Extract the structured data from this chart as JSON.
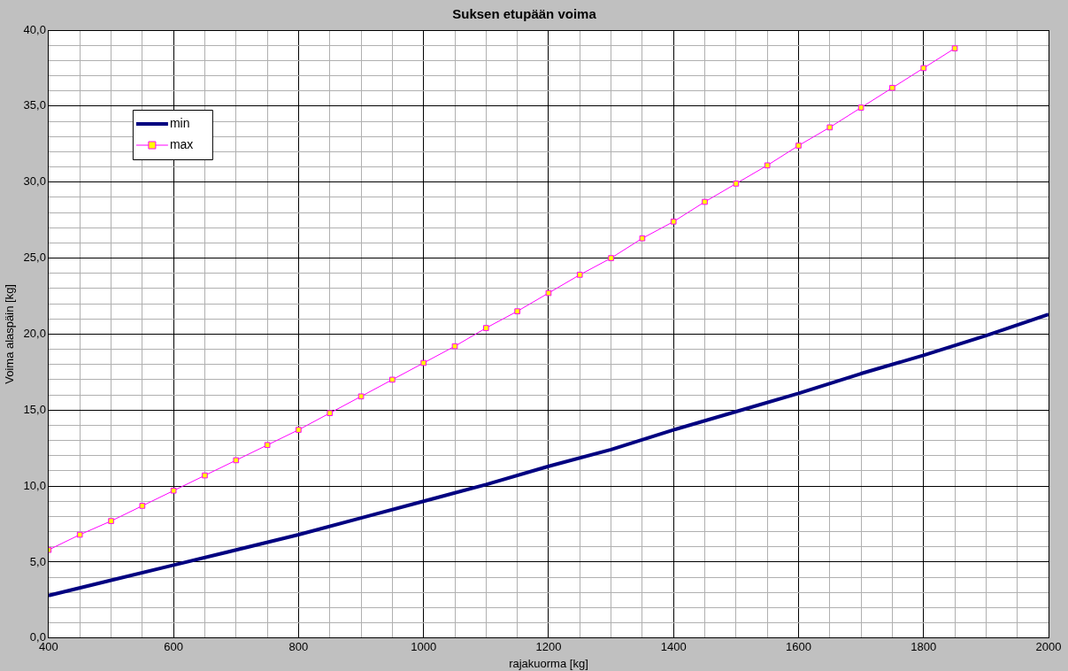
{
  "chart_data": {
    "type": "line",
    "title": "Suksen etupään voima",
    "xlabel": "rajakuorma [kg]",
    "ylabel": "Voima alaspäin [kg]",
    "xlim": [
      400,
      2000
    ],
    "ylim": [
      0,
      40
    ],
    "xticks": [
      400,
      {
        "value": 450,
        "label": null
      },
      {
        "value": 500,
        "label": null
      },
      {
        "value": 550,
        "label": null
      },
      600,
      {
        "value": 650,
        "label": null
      },
      {
        "value": 700,
        "label": null
      },
      {
        "value": 750,
        "label": null
      },
      800,
      {
        "value": 850,
        "label": null
      },
      {
        "value": 900,
        "label": null
      },
      {
        "value": 950,
        "label": null
      },
      1000,
      {
        "value": 1050,
        "label": null
      },
      {
        "value": 1100,
        "label": null
      },
      {
        "value": 1150,
        "label": null
      },
      1200,
      {
        "value": 1250,
        "label": null
      },
      {
        "value": 1300,
        "label": null
      },
      {
        "value": 1350,
        "label": null
      },
      1400,
      {
        "value": 1450,
        "label": null
      },
      {
        "value": 1500,
        "label": null
      },
      {
        "value": 1550,
        "label": null
      },
      1600,
      {
        "value": 1650,
        "label": null
      },
      {
        "value": 1700,
        "label": null
      },
      {
        "value": 1750,
        "label": null
      },
      1800,
      {
        "value": 1850,
        "label": null
      },
      {
        "value": 1900,
        "label": null
      },
      {
        "value": 1950,
        "label": null
      },
      2000
    ],
    "yticks": [
      {
        "value": 0,
        "label": "0,0"
      },
      {
        "value": 1,
        "label": null
      },
      {
        "value": 2,
        "label": null
      },
      {
        "value": 3,
        "label": null
      },
      {
        "value": 4,
        "label": null
      },
      {
        "value": 5,
        "label": "5,0"
      },
      {
        "value": 6,
        "label": null
      },
      {
        "value": 7,
        "label": null
      },
      {
        "value": 8,
        "label": null
      },
      {
        "value": 9,
        "label": null
      },
      {
        "value": 10,
        "label": "10,0"
      },
      {
        "value": 11,
        "label": null
      },
      {
        "value": 12,
        "label": null
      },
      {
        "value": 13,
        "label": null
      },
      {
        "value": 14,
        "label": null
      },
      {
        "value": 15,
        "label": "15,0"
      },
      {
        "value": 16,
        "label": null
      },
      {
        "value": 17,
        "label": null
      },
      {
        "value": 18,
        "label": null
      },
      {
        "value": 19,
        "label": null
      },
      {
        "value": 20,
        "label": "20,0"
      },
      {
        "value": 21,
        "label": null
      },
      {
        "value": 22,
        "label": null
      },
      {
        "value": 23,
        "label": null
      },
      {
        "value": 24,
        "label": null
      },
      {
        "value": 25,
        "label": "25,0"
      },
      {
        "value": 26,
        "label": null
      },
      {
        "value": 27,
        "label": null
      },
      {
        "value": 28,
        "label": null
      },
      {
        "value": 29,
        "label": null
      },
      {
        "value": 30,
        "label": "30,0"
      },
      {
        "value": 31,
        "label": null
      },
      {
        "value": 32,
        "label": null
      },
      {
        "value": 33,
        "label": null
      },
      {
        "value": 34,
        "label": null
      },
      {
        "value": 35,
        "label": "35,0"
      },
      {
        "value": 36,
        "label": null
      },
      {
        "value": 37,
        "label": null
      },
      {
        "value": 38,
        "label": null
      },
      {
        "value": 39,
        "label": null
      },
      {
        "value": 40,
        "label": "40,0"
      }
    ],
    "grid": true,
    "legend": "top left",
    "series": [
      {
        "name": "min",
        "color": "#000080",
        "marker": "none",
        "x": [
          400,
          500,
          600,
          700,
          800,
          900,
          1000,
          1100,
          1200,
          1300,
          1400,
          1500,
          1600,
          1700,
          1800,
          1900,
          2000
        ],
        "values": [
          2.8,
          3.8,
          4.8,
          5.8,
          6.8,
          7.9,
          9.0,
          10.1,
          11.3,
          12.4,
          13.7,
          14.9,
          16.1,
          17.4,
          18.6,
          19.9,
          21.3
        ]
      },
      {
        "name": "max",
        "color": "#ff00ff",
        "marker": "square",
        "x": [
          400,
          450,
          500,
          550,
          600,
          650,
          700,
          750,
          800,
          850,
          900,
          950,
          1000,
          1050,
          1100,
          1150,
          1200,
          1250,
          1300,
          1350,
          1400,
          1450,
          1500,
          1550,
          1600,
          1650,
          1700,
          1750,
          1800,
          1850
        ],
        "values": [
          5.8,
          6.8,
          7.7,
          8.7,
          9.7,
          10.7,
          11.7,
          12.7,
          13.7,
          14.8,
          15.9,
          17.0,
          18.1,
          19.2,
          20.4,
          21.5,
          22.7,
          23.9,
          25.0,
          26.3,
          27.4,
          28.7,
          29.9,
          31.1,
          32.4,
          33.6,
          34.9,
          36.2,
          37.5,
          38.8
        ]
      }
    ]
  }
}
